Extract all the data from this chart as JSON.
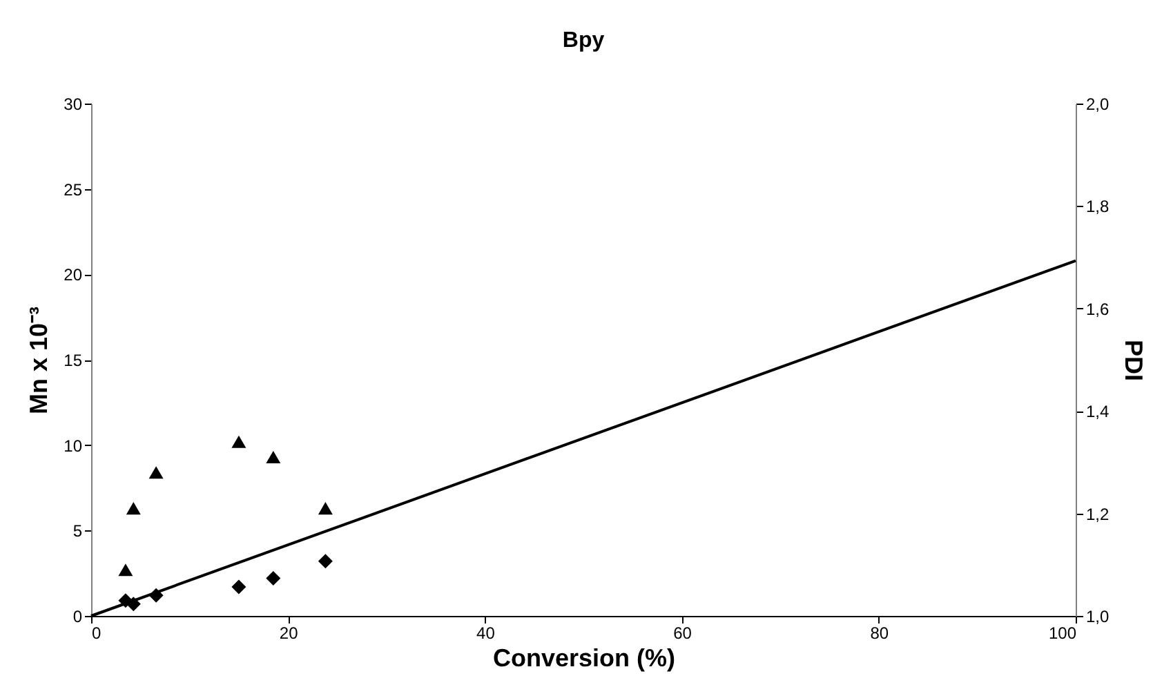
{
  "chart_data": {
    "type": "scatter",
    "title": "Bpy",
    "xlabel": "Conversion (%)",
    "ylabel": "Mn x 10⁻³",
    "y2label": "PDI",
    "grid": false,
    "xlim": [
      0,
      100
    ],
    "xticks": [
      0,
      20,
      40,
      60,
      80,
      100
    ],
    "ylim": [
      0,
      30
    ],
    "yticks": [
      0,
      5,
      10,
      15,
      20,
      25,
      30
    ],
    "y2lim": [
      1,
      2
    ],
    "y2ticks": [
      {
        "value": 1,
        "label": "1,0"
      },
      {
        "value": 1.2,
        "label": "1,2"
      },
      {
        "value": 1.4,
        "label": "1,4"
      },
      {
        "value": 1.6,
        "label": "1,6"
      },
      {
        "value": 1.8,
        "label": "1,8"
      },
      {
        "value": 2,
        "label": "2,0"
      }
    ],
    "series": [
      {
        "type": "line",
        "color": "#000000",
        "marker": "none",
        "line_style": "solid",
        "x": [
          0,
          100
        ],
        "values": [
          0,
          20.8
        ]
      },
      {
        "color": "#000000",
        "marker": "diamond",
        "x": [
          3.5,
          4.3,
          6.6,
          15.0,
          18.5,
          23.8
        ],
        "values": [
          0.9,
          0.7,
          1.2,
          1.7,
          2.2,
          3.2
        ]
      },
      {
        "color": "#000000",
        "marker": "triangle",
        "axis": "y2",
        "x": [
          3.5,
          4.3,
          6.6,
          15.0,
          18.5,
          23.8
        ],
        "values": [
          1.09,
          1.21,
          1.28,
          1.34,
          1.31,
          1.21
        ]
      }
    ]
  }
}
